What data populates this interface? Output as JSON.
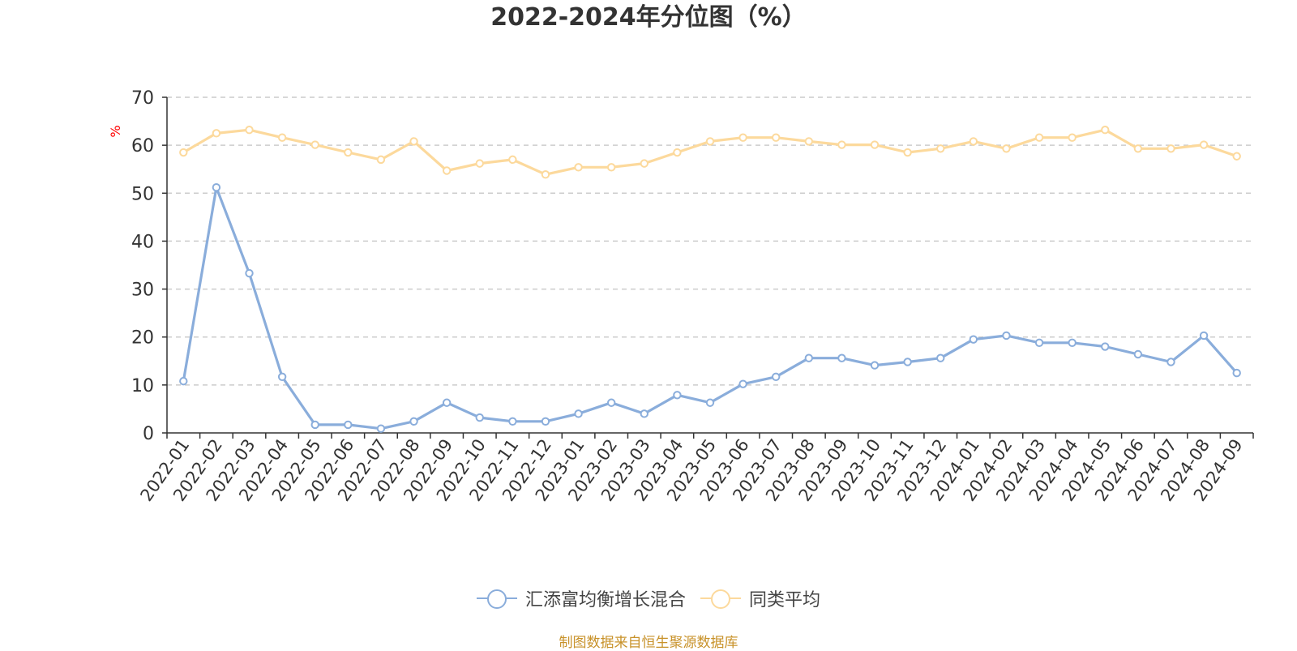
{
  "chart_data": {
    "type": "line",
    "title": "2022-2024年分位图（%）",
    "ylabel": "%",
    "xlabel": "",
    "ylim": [
      0,
      70
    ],
    "yticks": [
      0,
      10,
      20,
      30,
      40,
      50,
      60,
      70
    ],
    "grid": true,
    "legend_position": "bottom-center",
    "categories": [
      "2022-01",
      "2022-02",
      "2022-03",
      "2022-04",
      "2022-05",
      "2022-06",
      "2022-07",
      "2022-08",
      "2022-09",
      "2022-10",
      "2022-11",
      "2022-12",
      "2023-01",
      "2023-02",
      "2023-03",
      "2023-04",
      "2023-05",
      "2023-06",
      "2023-07",
      "2023-08",
      "2023-09",
      "2023-10",
      "2023-11",
      "2023-12",
      "2024-01",
      "2024-02",
      "2024-03",
      "2024-04",
      "2024-05",
      "2024-06",
      "2024-07",
      "2024-08",
      "2024-09"
    ],
    "series": [
      {
        "name": "汇添富均衡增长混合",
        "color": "#8aaddb",
        "values": [
          10.8,
          51.2,
          33.3,
          11.7,
          1.7,
          1.7,
          0.9,
          2.4,
          6.3,
          3.2,
          2.4,
          2.4,
          4.0,
          6.3,
          4.0,
          7.9,
          6.3,
          10.2,
          11.7,
          15.6,
          15.6,
          14.1,
          14.8,
          15.6,
          19.5,
          20.3,
          18.8,
          18.8,
          18.0,
          16.4,
          14.8,
          20.3,
          12.5
        ]
      },
      {
        "name": "同类平均",
        "color": "#fcd99c",
        "values": [
          58.5,
          62.5,
          63.2,
          61.6,
          60.1,
          58.5,
          57.0,
          60.8,
          54.7,
          56.2,
          57.0,
          53.9,
          55.4,
          55.4,
          56.2,
          58.5,
          60.8,
          61.6,
          61.6,
          60.8,
          60.1,
          60.1,
          58.5,
          59.3,
          60.8,
          59.3,
          61.6,
          61.6,
          63.2,
          59.3,
          59.3,
          60.1,
          57.7
        ]
      }
    ]
  },
  "source": "制图数据来自恒生聚源数据库"
}
